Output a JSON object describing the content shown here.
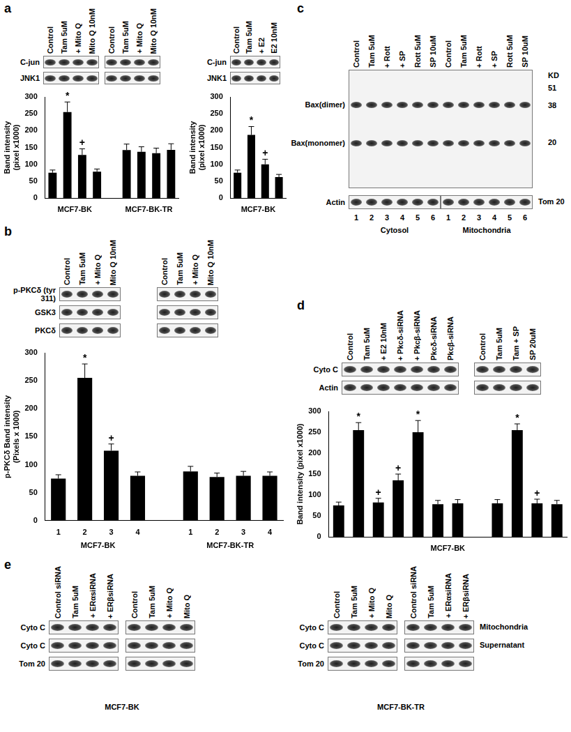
{
  "chart_data": [
    {
      "type": "bar",
      "categories": [
        null,
        null,
        null,
        null,
        null,
        null,
        null,
        null,
        null
      ],
      "values": [
        75,
        255,
        128,
        78,
        null,
        142,
        137,
        133,
        143
      ],
      "errors": [
        8,
        30,
        18,
        8,
        null,
        18,
        15,
        15,
        18
      ],
      "annotations": [
        null,
        "*",
        "+",
        null,
        null,
        null,
        null,
        null,
        null
      ],
      "color": "#000000",
      "ylim": [
        0,
        300
      ],
      "yticks": [
        0,
        50,
        100,
        150,
        200,
        250,
        300
      ],
      "y_label": [
        "Band intensity",
        "(pixel x1000)"
      ],
      "x_groups": [
        {
          "label": "MCF7-BK",
          "from": 0,
          "to": 3
        },
        {
          "label": "MCF7-BK-TR",
          "from": 5,
          "to": 8
        }
      ],
      "tick_labels": "y"
    },
    {
      "type": "bar",
      "categories": [
        null,
        null,
        null,
        null
      ],
      "values": [
        75,
        187,
        100,
        62
      ],
      "errors": [
        8,
        25,
        15,
        8
      ],
      "annotations": [
        null,
        "*",
        "+",
        null
      ],
      "color": "#000000",
      "ylim": [
        0,
        300
      ],
      "yticks": [
        0,
        50,
        100,
        150,
        200,
        250,
        300
      ],
      "y_label": [
        "Band intensity",
        "(pixel x1000)"
      ],
      "x_groups": [
        {
          "label": "MCF7-BK",
          "from": 0,
          "to": 3
        }
      ],
      "tick_labels": "y"
    },
    {
      "type": "bar",
      "categories": [
        "1",
        "2",
        "3",
        "4",
        null,
        "1",
        "2",
        "3",
        "4"
      ],
      "values": [
        75,
        255,
        125,
        80,
        null,
        88,
        78,
        80,
        80
      ],
      "errors": [
        7,
        25,
        12,
        7,
        null,
        9,
        7,
        8,
        7
      ],
      "annotations": [
        null,
        "*",
        "+",
        null,
        null,
        null,
        null,
        null,
        null
      ],
      "color": "#000000",
      "ylim": [
        0,
        300
      ],
      "yticks": [
        0,
        50,
        100,
        150,
        200,
        250,
        300
      ],
      "y_label": [
        "p-PKCδ Band intensity",
        "(Pixels x 1000)"
      ],
      "x_groups": [
        {
          "label": "MCF7-BK",
          "from": 0,
          "to": 3
        },
        {
          "label": "MCF7-BK-TR",
          "from": 5,
          "to": 8
        }
      ]
    },
    {
      "type": "bar",
      "categories": [
        null,
        null,
        null,
        null,
        null,
        null,
        null,
        null,
        null,
        null,
        null,
        null
      ],
      "values": [
        75,
        255,
        82,
        135,
        250,
        78,
        80,
        null,
        80,
        255,
        80,
        78
      ],
      "errors": [
        8,
        18,
        10,
        15,
        28,
        9,
        9,
        null,
        9,
        15,
        10,
        9
      ],
      "annotations": [
        null,
        "*",
        "+",
        "+",
        "*",
        null,
        null,
        null,
        null,
        "*",
        "+",
        null
      ],
      "color": "#000000",
      "ylim": [
        0,
        300
      ],
      "yticks": [
        0,
        50,
        100,
        150,
        200,
        250,
        300
      ],
      "y_label": [
        "Band intensity (pixel x1000)"
      ],
      "x_groups": [
        {
          "label": "MCF7-BK",
          "from": 0,
          "to": 11
        }
      ],
      "tick_labels": "y"
    }
  ],
  "panels": [
    {
      "letter": "a",
      "rows": [
        "C-jun",
        "JNK1"
      ],
      "blots": [
        {
          "lanes": [
            "Control",
            "Tam 5uM",
            "+ Mito Q",
            "Mito Q 10nM"
          ],
          "row_labels": true
        },
        {
          "lanes": [
            "Control",
            "Tam 5uM",
            "+ Mito Q",
            "Mito Q 10nM"
          ],
          "row_labels": false
        },
        {
          "lanes": [
            "Control",
            "Tam 5uM",
            "+ E2",
            "E2 10nM"
          ],
          "row_labels": true
        }
      ]
    },
    {
      "letter": "b",
      "rows": [
        "p-PKCδ (tyr 311)",
        "GSK3",
        "PKCδ"
      ],
      "blots": [
        {
          "lanes": [
            "Control",
            "Tam 5uM",
            "+ Mito Q",
            "Mito Q 10nM"
          ],
          "row_labels": true
        },
        {
          "lanes": [
            "Control",
            "Tam 5uM",
            "+ Mito Q",
            "Mito Q 10nM"
          ],
          "row_labels": false
        }
      ]
    },
    {
      "letter": "c",
      "rows": [
        "Bax(dimer)",
        "Bax(monomer)"
      ],
      "lanes": [
        "Control",
        "Tam 5uM",
        "+ Rott",
        "+ SP",
        "Rott 5uM",
        "SP 10uM",
        "Control",
        "Tam 5uM",
        "+ Rott",
        "+ SP",
        "Rott 5uM",
        "SP 10uM"
      ],
      "marker_unit": "KD",
      "markers": [
        51,
        38,
        20
      ],
      "loading": [
        "Actin",
        "Tom 20"
      ],
      "lane_numbers": [
        1,
        2,
        3,
        4,
        5,
        6,
        1,
        2,
        3,
        4,
        5,
        6
      ],
      "fractions": [
        "Cytosol",
        "Mitochondria"
      ]
    },
    {
      "letter": "d",
      "rows": [
        "Cyto C",
        "Actin"
      ],
      "blots": [
        {
          "lanes": [
            "Control",
            "Tam 5uM",
            "+ E2 10nM",
            "+ Pkcδ-siRNA",
            "+ Pkcβ-siRNA",
            "Pkcδ-siRNA",
            "Pkcβ-siRNA"
          ],
          "row_labels": true
        },
        {
          "lanes": [
            "Control",
            "Tam 5uM",
            "Tam + SP",
            "SP 20uM"
          ],
          "row_labels": false
        }
      ]
    },
    {
      "letter": "e",
      "rows": [
        "Cyto C",
        "Cyto C",
        "Tom 20"
      ],
      "right_rows": [
        "Mitochondria",
        "Supernatant"
      ],
      "groups": [
        "MCF7-BK",
        "MCF7-BK-TR"
      ],
      "blots": [
        {
          "lanes": [
            "Control siRNA",
            "Tam 5uM",
            "+ ERαsiRNA",
            "+ ERβsiRNA"
          ],
          "row_labels": true
        },
        {
          "lanes": [
            "Control",
            "Tam 5uM",
            "+ Mito Q",
            "Mito Q"
          ],
          "row_labels": false
        },
        {
          "lanes": [
            "Control",
            "Tam 5uM",
            "+ Mito Q",
            "Mito Q"
          ],
          "row_labels": true
        },
        {
          "lanes": [
            "Control siRNA",
            "Tam 5uM",
            "+ ERαsiRNA",
            "+ ERβsiRNA"
          ],
          "row_labels": false
        }
      ]
    }
  ]
}
